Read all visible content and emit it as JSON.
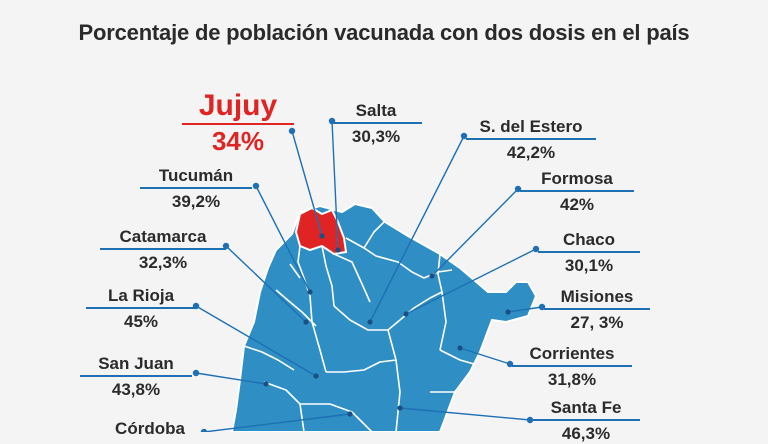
{
  "title": "Porcentaje de población vacunada con dos dosis en el país",
  "colors": {
    "map_fill": "#2f8fc4",
    "border": "#ffffff",
    "highlight": "#e02424",
    "leader": "#1e6fb4",
    "text": "#2b2b2b"
  },
  "provinces": [
    {
      "id": "jujuy",
      "name": "Jujuy",
      "value": "34%",
      "highlight": true
    },
    {
      "id": "salta",
      "name": "Salta",
      "value": "30,3%"
    },
    {
      "id": "sdelestero",
      "name": "S. del Estero",
      "value": "42,2%"
    },
    {
      "id": "tucuman",
      "name": "Tucumán",
      "value": "39,2%"
    },
    {
      "id": "formosa",
      "name": "Formosa",
      "value": "42%"
    },
    {
      "id": "catamarca",
      "name": "Catamarca",
      "value": "32,3%"
    },
    {
      "id": "chaco",
      "name": "Chaco",
      "value": "30,1%"
    },
    {
      "id": "larioja",
      "name": "La Rioja",
      "value": "45%"
    },
    {
      "id": "misiones",
      "name": "Misiones",
      "value": "27, 3%"
    },
    {
      "id": "sanjuan",
      "name": "San Juan",
      "value": "43,8%"
    },
    {
      "id": "corrientes",
      "name": "Corrientes",
      "value": "31,8%"
    },
    {
      "id": "cordoba",
      "name": "Córdoba",
      "value": ""
    },
    {
      "id": "santafe",
      "name": "Santa Fe",
      "value": "46,3%"
    }
  ]
}
